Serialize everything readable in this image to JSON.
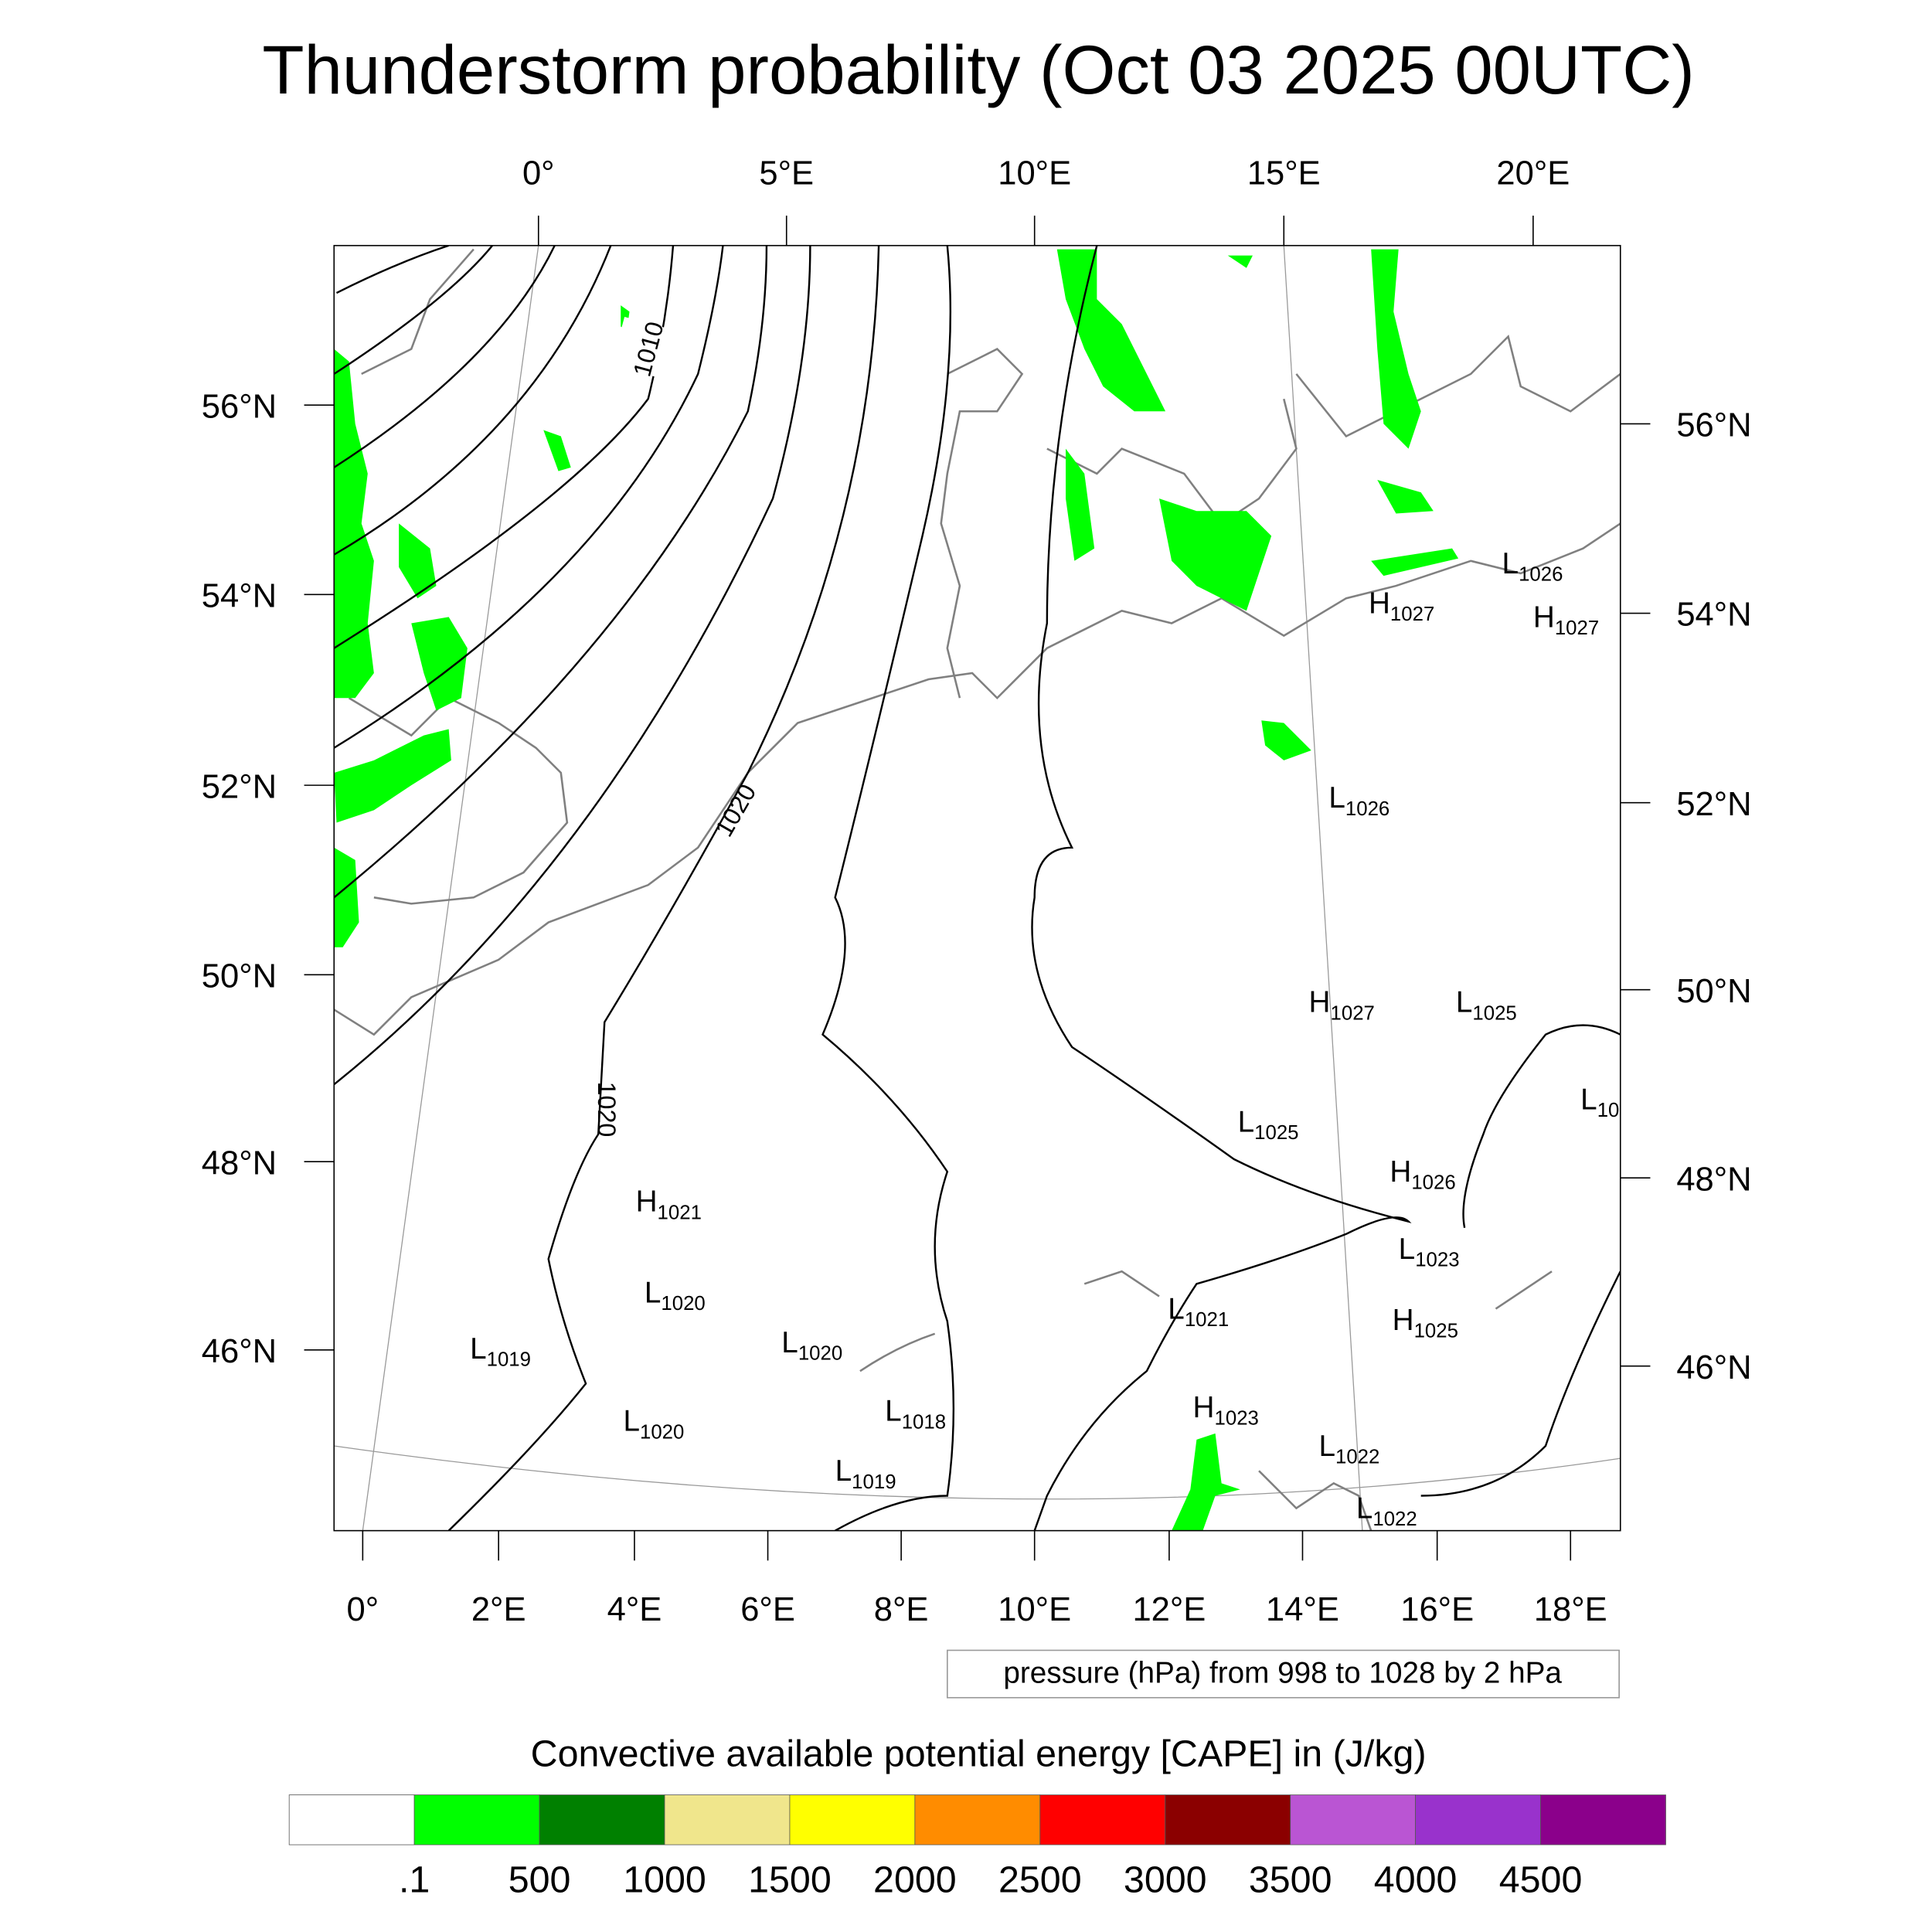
{
  "title": "Thunderstorm probability (Oct 03 2025 00UTC)",
  "axes": {
    "top_lon": [
      "0°",
      "5°E",
      "10°E",
      "15°E",
      "20°E"
    ],
    "bottom_lon": [
      "0°",
      "2°E",
      "4°E",
      "6°E",
      "8°E",
      "10°E",
      "12°E",
      "14°E",
      "16°E",
      "18°E"
    ],
    "left_lat": [
      "56°N",
      "54°N",
      "52°N",
      "50°N",
      "48°N",
      "46°N"
    ],
    "right_lat": [
      "56°N",
      "54°N",
      "52°N",
      "50°N",
      "48°N",
      "46°N"
    ]
  },
  "contour_info": "pressure (hPa) from 998 to 1028 by 2 hPa",
  "contour_labels": [
    "1010",
    "1020",
    "1020"
  ],
  "pressure_centers": [
    {
      "type": "H",
      "value": "1021"
    },
    {
      "type": "L",
      "value": "1020"
    },
    {
      "type": "L",
      "value": "1019"
    },
    {
      "type": "L",
      "value": "1020"
    },
    {
      "type": "L",
      "value": "1020"
    },
    {
      "type": "L",
      "value": "1018"
    },
    {
      "type": "L",
      "value": "1019"
    },
    {
      "type": "L",
      "value": "1021"
    },
    {
      "type": "H",
      "value": "1023"
    },
    {
      "type": "L",
      "value": "1022"
    },
    {
      "type": "L",
      "value": "1022"
    },
    {
      "type": "L",
      "value": "1025"
    },
    {
      "type": "H",
      "value": "1027"
    },
    {
      "type": "L",
      "value": "1025"
    },
    {
      "type": "L",
      "value": "10"
    },
    {
      "type": "H",
      "value": "1026"
    },
    {
      "type": "L",
      "value": "1023"
    },
    {
      "type": "H",
      "value": "1025"
    },
    {
      "type": "L",
      "value": "1026"
    },
    {
      "type": "H",
      "value": "1027"
    },
    {
      "type": "L",
      "value": "1026"
    },
    {
      "type": "H",
      "value": "1027"
    }
  ],
  "colorbar": {
    "title": "Convective available potential energy [CAPE] in (J/kg)",
    "colors": [
      "#ffffff",
      "#00ff00",
      "#008000",
      "#f0e68c",
      "#ffff00",
      "#ff8c00",
      "#ff0000",
      "#8b0000",
      "#ba55d3",
      "#9932cc",
      "#8b008b"
    ],
    "labels": [
      ".1",
      "500",
      "1000",
      "1500",
      "2000",
      "2500",
      "3000",
      "3500",
      "4000",
      "4500"
    ]
  },
  "chart_data": {
    "type": "heatmap",
    "title": "Thunderstorm probability (Oct 03 2025 00UTC)",
    "field": "CAPE (J/kg)",
    "overlay": "sea level pressure contours 998-1028 hPa by 2 hPa",
    "lon_range": [
      -0.5,
      18.5
    ],
    "lat_range": [
      44.5,
      57.5
    ]
  }
}
